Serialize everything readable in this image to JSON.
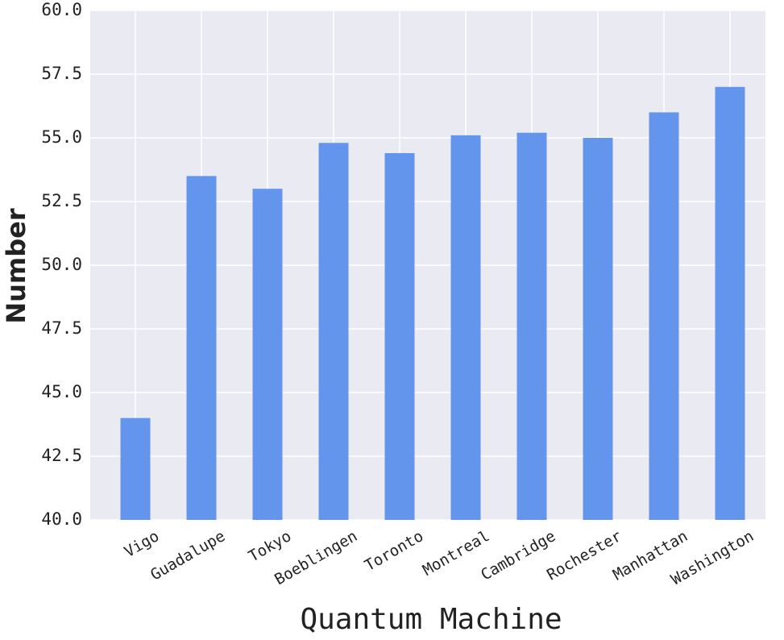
{
  "chart_data": {
    "type": "bar",
    "x_label": "Quantum Machine",
    "y_label": "Number",
    "categories": [
      "Vigo",
      "Guadalupe",
      "Tokyo",
      "Boeblingen",
      "Toronto",
      "Montreal",
      "Cambridge",
      "Rochester",
      "Manhattan",
      "Washington"
    ],
    "values": [
      44,
      53.5,
      53,
      54.8,
      54.4,
      55.1,
      55.2,
      55,
      56,
      57
    ],
    "color": "#6495ed",
    "ylim": [
      40,
      60
    ],
    "yticks": [
      {
        "value": 40,
        "label": "40.0"
      },
      42.5,
      {
        "value": 45,
        "label": "45.0"
      },
      47.5,
      {
        "value": 50,
        "label": "50.0"
      },
      52.5,
      {
        "value": 55,
        "label": "55.0"
      },
      57.5,
      {
        "value": 60,
        "label": "60.0"
      }
    ],
    "grid": true
  }
}
